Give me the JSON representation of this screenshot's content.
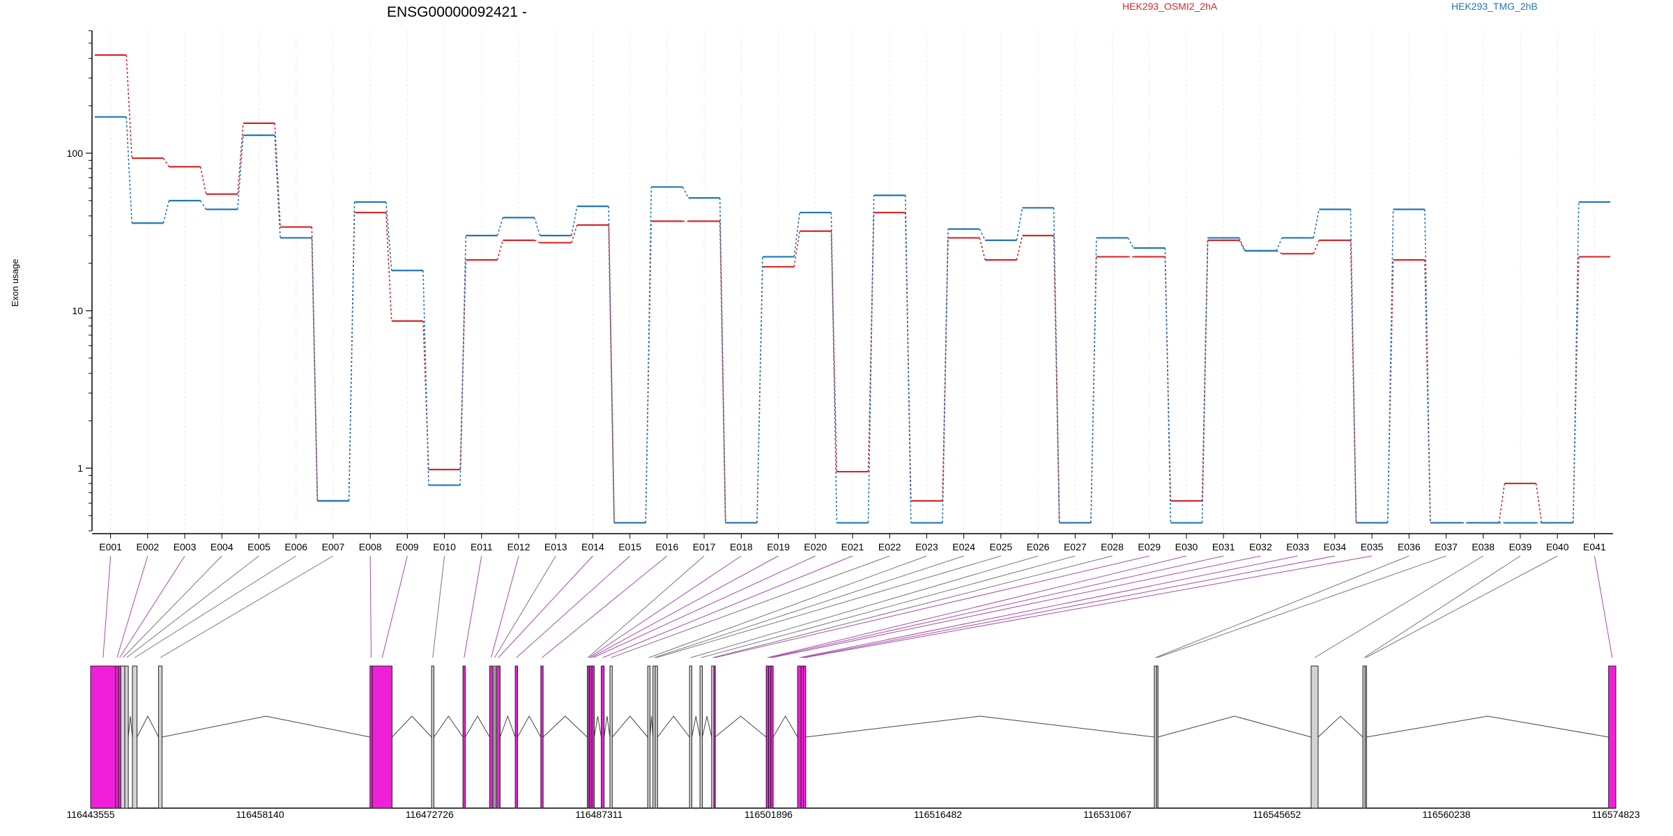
{
  "chart_data": {
    "type": "line",
    "title": "ENSG00000092421 -",
    "ylabel": "Exon usage",
    "xlabel": "",
    "yscale": "log",
    "ylim": [
      0.4,
      600
    ],
    "yticks": [
      1,
      10,
      100
    ],
    "grid": "vertical",
    "legend": "top-right",
    "categories": [
      "E001",
      "E002",
      "E003",
      "E004",
      "E005",
      "E006",
      "E007",
      "E008",
      "E009",
      "E010",
      "E011",
      "E012",
      "E013",
      "E014",
      "E015",
      "E016",
      "E017",
      "E018",
      "E019",
      "E020",
      "E021",
      "E022",
      "E023",
      "E024",
      "E025",
      "E026",
      "E027",
      "E028",
      "E029",
      "E030",
      "E031",
      "E032",
      "E033",
      "E034",
      "E035",
      "E036",
      "E037",
      "E038",
      "E039",
      "E040",
      "E041"
    ],
    "series": [
      {
        "name": "HEK293_OSMI2_2hA",
        "color": "#d62728",
        "values": [
          420,
          93,
          82,
          55,
          155,
          34,
          0.62,
          42,
          8.6,
          0.98,
          21,
          28,
          27,
          35,
          0.45,
          37,
          37,
          0.45,
          19,
          32,
          0.95,
          42,
          0.62,
          29,
          21,
          30,
          0.45,
          22,
          22,
          0.62,
          28,
          24,
          23,
          28,
          0.45,
          21,
          0.45,
          0.45,
          0.8,
          0.45,
          22
        ]
      },
      {
        "name": "HEK293_TMG_2hB",
        "color": "#1f77b4",
        "values": [
          170,
          36,
          50,
          44,
          130,
          29,
          0.62,
          49,
          18,
          0.78,
          30,
          39,
          30,
          46,
          0.45,
          61,
          52,
          0.45,
          22,
          42,
          0.45,
          54,
          0.45,
          33,
          28,
          45,
          0.45,
          29,
          25,
          0.45,
          29,
          24,
          29,
          44,
          0.45,
          44,
          0.45,
          0.45,
          0.45,
          0.45,
          49
        ]
      }
    ],
    "genomic_axis": {
      "tick_labels": [
        "116443555",
        "116458140",
        "116472726",
        "116487311",
        "116501896",
        "116516482",
        "116531067",
        "116545652",
        "116560238",
        "116574823"
      ],
      "range": [
        116443555,
        116574823
      ]
    },
    "exons": [
      {
        "id": "E001",
        "start": 116443555,
        "end": 116445700,
        "sig": true
      },
      {
        "id": "E002",
        "start": 116445700,
        "end": 116445950,
        "sig": true
      },
      {
        "id": "E003",
        "start": 116445950,
        "end": 116446150,
        "sig": true
      },
      {
        "id": "E004",
        "start": 116446150,
        "end": 116446500,
        "sig": false
      },
      {
        "id": "E005",
        "start": 116446500,
        "end": 116446800,
        "sig": false
      },
      {
        "id": "E006",
        "start": 116447150,
        "end": 116447550,
        "sig": false
      },
      {
        "id": "E007",
        "start": 116449400,
        "end": 116449700,
        "sig": false
      },
      {
        "id": "E008",
        "start": 116467600,
        "end": 116467800,
        "sig": true
      },
      {
        "id": "E009",
        "start": 116467800,
        "end": 116469500,
        "sig": true
      },
      {
        "id": "E010",
        "start": 116472900,
        "end": 116473100,
        "sig": false
      },
      {
        "id": "E011",
        "start": 116475600,
        "end": 116475800,
        "sig": true
      },
      {
        "id": "E012",
        "start": 116477900,
        "end": 116478150,
        "sig": true
      },
      {
        "id": "E013",
        "start": 116478250,
        "end": 116478400,
        "sig": false
      },
      {
        "id": "E014",
        "start": 116478500,
        "end": 116478800,
        "sig": true
      },
      {
        "id": "E015",
        "start": 116480100,
        "end": 116480300,
        "sig": true
      },
      {
        "id": "E016",
        "start": 116482300,
        "end": 116482500,
        "sig": true
      },
      {
        "id": "E017",
        "start": 116486300,
        "end": 116486400,
        "sig": false
      },
      {
        "id": "E018",
        "start": 116486400,
        "end": 116486500,
        "sig": true
      },
      {
        "id": "E019",
        "start": 116486500,
        "end": 116486700,
        "sig": true
      },
      {
        "id": "E020",
        "start": 116486700,
        "end": 116486900,
        "sig": true
      },
      {
        "id": "E021",
        "start": 116487500,
        "end": 116487750,
        "sig": true
      },
      {
        "id": "E022",
        "start": 116488250,
        "end": 116488450,
        "sig": false
      },
      {
        "id": "E023",
        "start": 116491500,
        "end": 116491700,
        "sig": false
      },
      {
        "id": "E024",
        "start": 116491950,
        "end": 116492150,
        "sig": false
      },
      {
        "id": "E025",
        "start": 116492150,
        "end": 116492350,
        "sig": false
      },
      {
        "id": "E026",
        "start": 116495100,
        "end": 116495300,
        "sig": false
      },
      {
        "id": "E027",
        "start": 116496000,
        "end": 116496200,
        "sig": false
      },
      {
        "id": "E028",
        "start": 116497000,
        "end": 116497200,
        "sig": false
      },
      {
        "id": "E029",
        "start": 116497200,
        "end": 116497300,
        "sig": true
      },
      {
        "id": "E030",
        "start": 116501700,
        "end": 116501900,
        "sig": true
      },
      {
        "id": "E031",
        "start": 116501900,
        "end": 116502100,
        "sig": true
      },
      {
        "id": "E032",
        "start": 116502100,
        "end": 116502300,
        "sig": true
      },
      {
        "id": "E033",
        "start": 116504400,
        "end": 116504700,
        "sig": true
      },
      {
        "id": "E034",
        "start": 116504700,
        "end": 116504900,
        "sig": true
      },
      {
        "id": "E035",
        "start": 116504900,
        "end": 116505100,
        "sig": true
      },
      {
        "id": "E036",
        "start": 116535100,
        "end": 116535300,
        "sig": false
      },
      {
        "id": "E037",
        "start": 116535300,
        "end": 116535400,
        "sig": false
      },
      {
        "id": "E038",
        "start": 116548600,
        "end": 116549200,
        "sig": false
      },
      {
        "id": "E039",
        "start": 116553050,
        "end": 116553250,
        "sig": false
      },
      {
        "id": "E040",
        "start": 116553250,
        "end": 116553350,
        "sig": false
      },
      {
        "id": "E041",
        "start": 116574200,
        "end": 116574823,
        "sig": true
      }
    ],
    "colors": {
      "significant_exon": "#f01fd8",
      "plain_exon": "#d3d3d3",
      "connector_significant": "#a64ca6",
      "connector_plain": "#777777",
      "grid": "#e9e9e9"
    }
  }
}
